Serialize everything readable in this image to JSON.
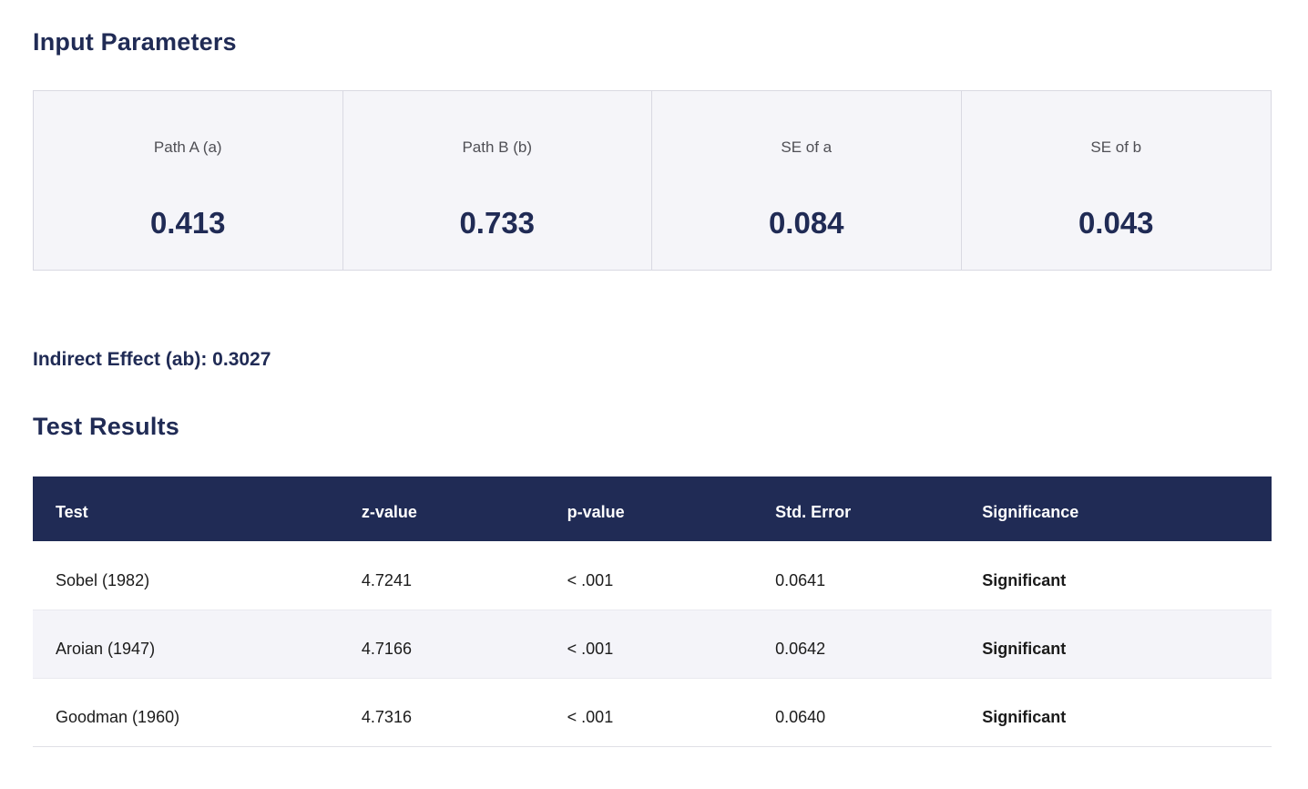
{
  "colors": {
    "navy": "#202b55",
    "green": "#49a355",
    "card_bg": "#f5f5f9",
    "card_border": "#d9d9e2",
    "row_alt_bg": "#f4f4f9",
    "row_border": "#e9e9ef",
    "label_gray": "#4f4f55",
    "body_text": "#1b1b1b"
  },
  "input_parameters": {
    "title": "Input Parameters",
    "cards": [
      {
        "label": "Path A (a)",
        "value": "0.413"
      },
      {
        "label": "Path B (b)",
        "value": "0.733"
      },
      {
        "label": "SE of a",
        "value": "0.084"
      },
      {
        "label": "SE of b",
        "value": "0.043"
      }
    ]
  },
  "indirect_effect": {
    "text": "Indirect Effect (ab): 0.3027"
  },
  "test_results": {
    "title": "Test Results",
    "columns": [
      "Test",
      "z-value",
      "p-value",
      "Std. Error",
      "Significance"
    ],
    "rows": [
      {
        "test": "Sobel (1982)",
        "z": "4.7241",
        "p": "< .001",
        "se": "0.0641",
        "sig": "Significant"
      },
      {
        "test": "Aroian (1947)",
        "z": "4.7166",
        "p": "< .001",
        "se": "0.0642",
        "sig": "Significant"
      },
      {
        "test": "Goodman (1960)",
        "z": "4.7316",
        "p": "< .001",
        "se": "0.0640",
        "sig": "Significant"
      }
    ]
  }
}
